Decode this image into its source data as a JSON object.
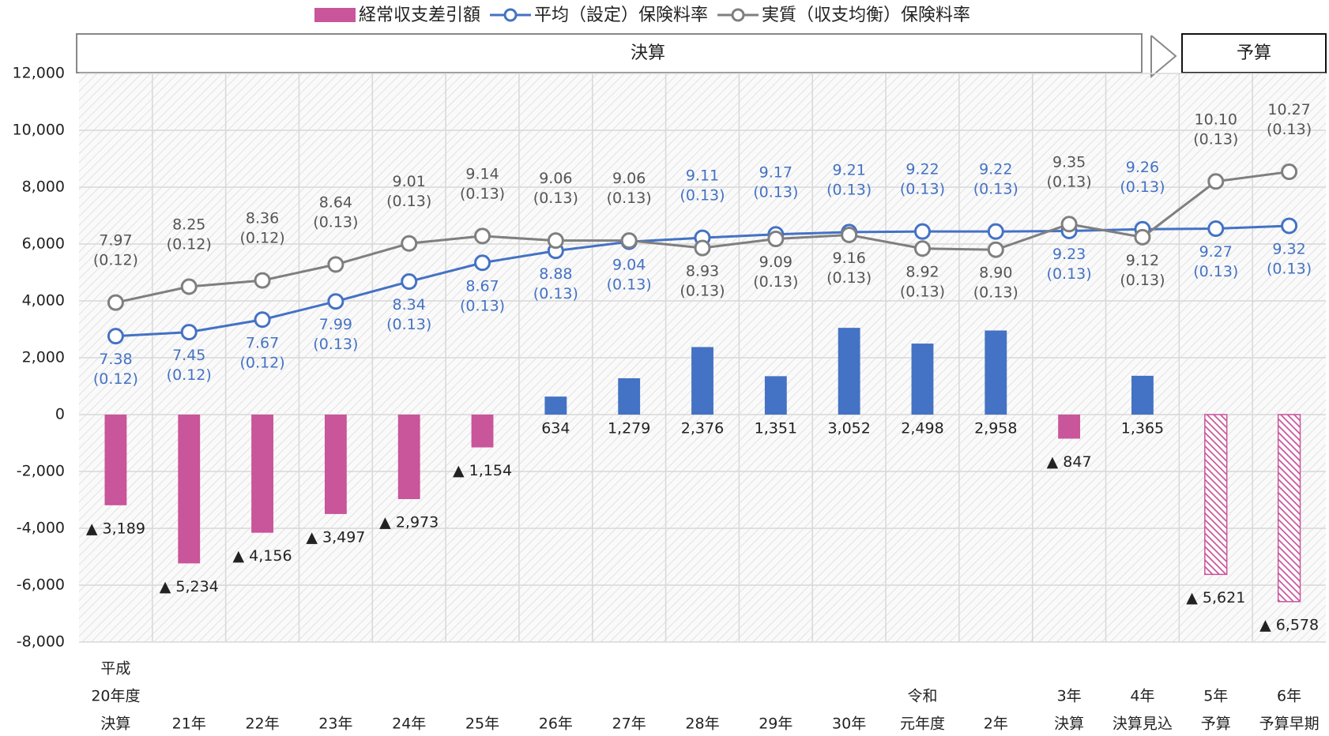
{
  "chart_data": {
    "type": "bar",
    "period_labels": [
      "決算",
      "予算"
    ],
    "categories": [
      [
        "平成",
        "20年度",
        "決算"
      ],
      [
        "21年"
      ],
      [
        "22年"
      ],
      [
        "23年"
      ],
      [
        "24年"
      ],
      [
        "25年"
      ],
      [
        "26年"
      ],
      [
        "27年"
      ],
      [
        "28年"
      ],
      [
        "29年"
      ],
      [
        "30年"
      ],
      [
        "令和",
        "元年度"
      ],
      [
        "2年"
      ],
      [
        "3年",
        "決算"
      ],
      [
        "4年",
        "決算見込"
      ],
      [
        "5年",
        "予算"
      ],
      [
        "6年",
        "予算早期"
      ]
    ],
    "ylim": [
      -8000,
      12000
    ],
    "yticks": [
      {
        "value": -8000,
        "label": "-8,000"
      },
      {
        "value": -6000,
        "label": "-6,000"
      },
      {
        "value": -4000,
        "label": "-4,000"
      },
      {
        "value": -2000,
        "label": "-2,000"
      },
      0,
      {
        "value": 2000,
        "label": "2,000"
      },
      {
        "value": 4000,
        "label": "4,000"
      },
      {
        "value": 6000,
        "label": "6,000"
      },
      {
        "value": 8000,
        "label": "8,000"
      },
      {
        "value": 10000,
        "label": "10,000"
      },
      {
        "value": 12000,
        "label": "12,000"
      }
    ],
    "y2lim": [
      2,
      12
    ],
    "grid": true,
    "series": [
      {
        "name": "経常収支差引額",
        "type": "bar",
        "colors": {
          "negative": "#c9559a",
          "positive": "#4472c4"
        },
        "bar_styles": [
          "solid",
          "solid",
          "solid",
          "solid",
          "solid",
          "solid",
          "solid",
          "solid",
          "solid",
          "solid",
          "solid",
          "solid",
          "solid",
          "solid",
          "solid",
          "hatched",
          "hatched"
        ],
        "values": [
          -3189,
          -5234,
          -4156,
          -3497,
          -2973,
          -1154,
          634,
          1279,
          2376,
          1351,
          3052,
          2498,
          2958,
          -847,
          1365,
          -5621,
          -6578
        ],
        "value_labels": [
          "▲ 3,189",
          "▲ 5,234",
          "▲ 4,156",
          "▲ 3,497",
          "▲ 2,973",
          "▲ 1,154",
          "634",
          "1,279",
          "2,376",
          "1,351",
          "3,052",
          "2,498",
          "2,958",
          "▲ 847",
          "1,365",
          "▲ 5,621",
          "▲ 6,578"
        ]
      },
      {
        "name": "平均（設定）保険料率",
        "type": "line",
        "axis": "y2",
        "color": "#4472c4",
        "values": [
          7.38,
          7.45,
          7.67,
          7.99,
          8.34,
          8.67,
          8.88,
          9.04,
          9.11,
          9.17,
          9.21,
          9.22,
          9.22,
          9.23,
          9.26,
          9.27,
          9.32
        ],
        "value_labels": [
          "7.38",
          "7.45",
          "7.67",
          "7.99",
          "8.34",
          "8.67",
          "8.88",
          "9.04",
          "9.11",
          "9.17",
          "9.21",
          "9.22",
          "9.22",
          "9.23",
          "9.26",
          "9.27",
          "9.32"
        ],
        "sub_labels": [
          "(0.12)",
          "(0.12)",
          "(0.12)",
          "(0.13)",
          "(0.13)",
          "(0.13)",
          "(0.13)",
          "(0.13)",
          "(0.13)",
          "(0.13)",
          "(0.13)",
          "(0.13)",
          "(0.13)",
          "(0.13)",
          "(0.13)",
          "(0.13)",
          "(0.13)"
        ]
      },
      {
        "name": "実質（収支均衡）保険料率",
        "type": "line",
        "axis": "y2",
        "color": "#7f7f7f",
        "values": [
          7.97,
          8.25,
          8.36,
          8.64,
          9.01,
          9.14,
          9.06,
          9.06,
          8.93,
          9.09,
          9.16,
          8.92,
          8.9,
          9.35,
          9.12,
          10.1,
          10.27
        ],
        "value_labels": [
          "7.97",
          "8.25",
          "8.36",
          "8.64",
          "9.01",
          "9.14",
          "9.06",
          "9.06",
          "8.93",
          "9.09",
          "9.16",
          "8.92",
          "8.90",
          "9.35",
          "9.12",
          "10.10",
          "10.27"
        ],
        "sub_labels": [
          "(0.12)",
          "(0.12)",
          "(0.12)",
          "(0.13)",
          "(0.13)",
          "(0.13)",
          "(0.13)",
          "(0.13)",
          "(0.13)",
          "(0.13)",
          "(0.13)",
          "(0.13)",
          "(0.13)",
          "(0.13)",
          "(0.13)",
          "(0.13)",
          "(0.13)"
        ]
      }
    ]
  }
}
